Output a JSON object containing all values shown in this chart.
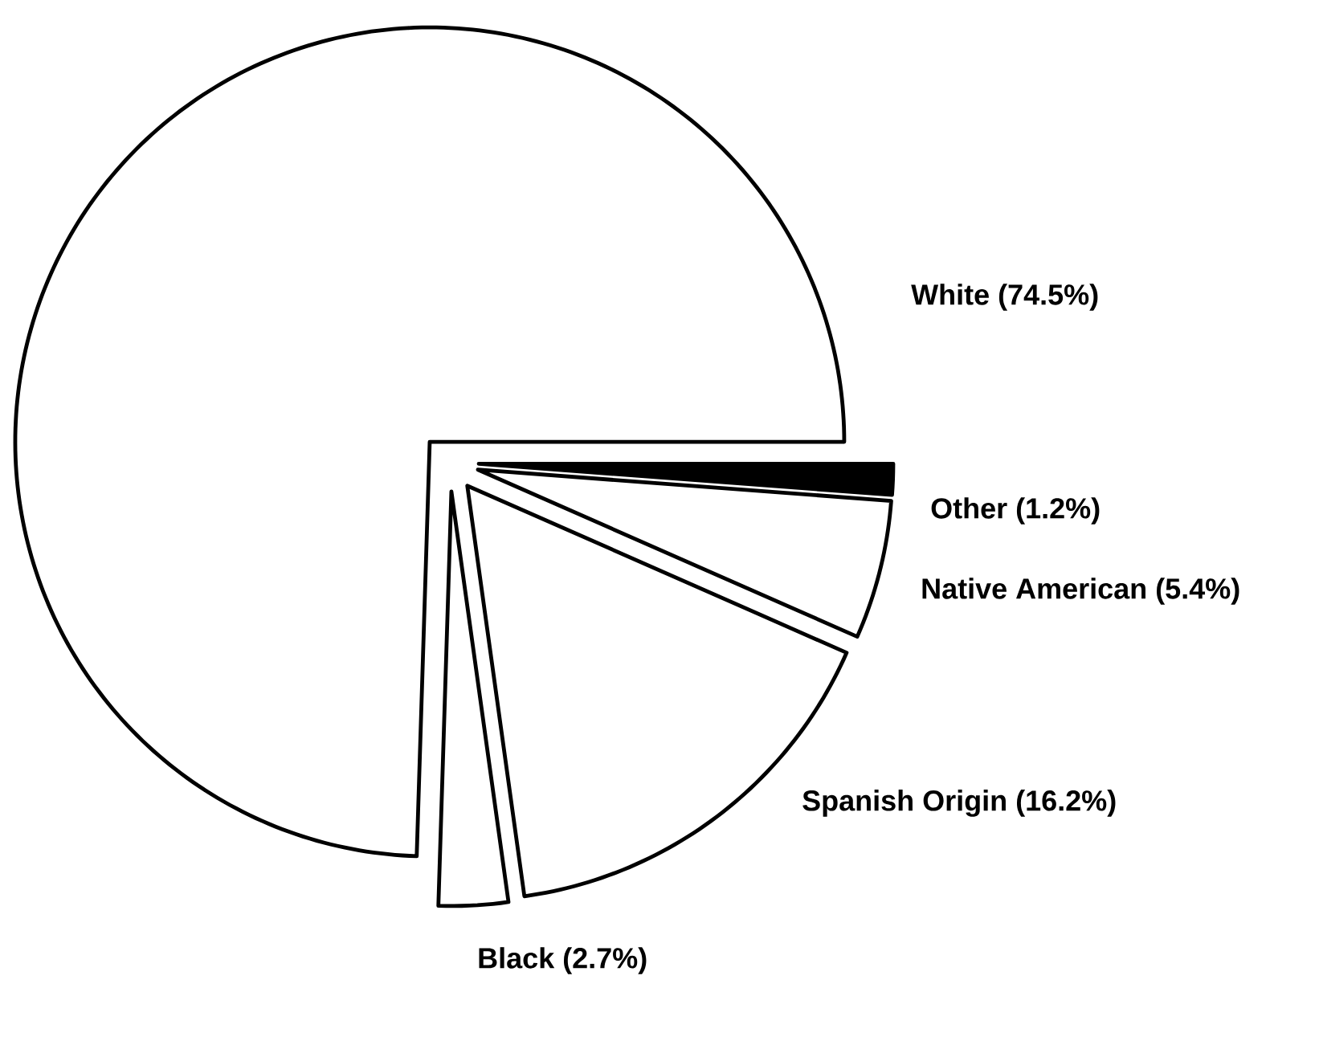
{
  "chart_data": {
    "type": "pie",
    "categories": [
      "White (74.5%)",
      "Black (2.7%)",
      "Spanish Origin (16.2%)",
      "Native American (5.4%)",
      "Other (1.2%)"
    ],
    "values": [
      74.5,
      2.7,
      16.2,
      5.4,
      1.2
    ],
    "colors": [
      "#ffffff",
      "#ffffff",
      "#ffffff",
      "#ffffff",
      "#000000"
    ]
  }
}
